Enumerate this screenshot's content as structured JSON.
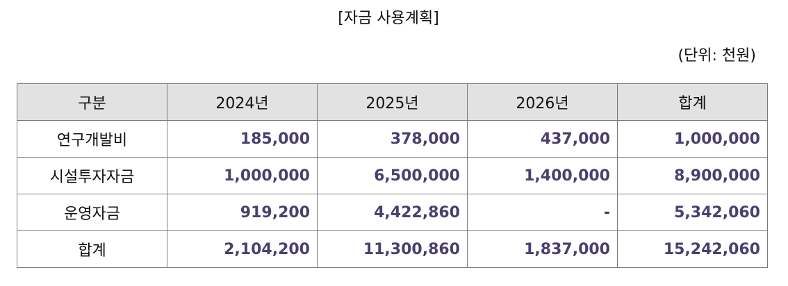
{
  "document": {
    "title": "[자금 사용계획]",
    "unit": "(단위: 천원)"
  },
  "colors": {
    "header_bg": "#e2e2e2",
    "value_text": "#4b3f6e",
    "border": "#7a7a7a"
  },
  "table": {
    "headers": [
      "구분",
      "2024년",
      "2025년",
      "2026년",
      "합계"
    ],
    "rows": [
      {
        "label": "연구개발비",
        "values": [
          "185,000",
          "378,000",
          "437,000",
          "1,000,000"
        ]
      },
      {
        "label": "시설투자자금",
        "values": [
          "1,000,000",
          "6,500,000",
          "1,400,000",
          "8,900,000"
        ]
      },
      {
        "label": "운영자금",
        "values": [
          "919,200",
          "4,422,860",
          "-",
          "5,342,060"
        ]
      },
      {
        "label": "합계",
        "values": [
          "2,104,200",
          "11,300,860",
          "1,837,000",
          "15,242,060"
        ]
      }
    ]
  }
}
